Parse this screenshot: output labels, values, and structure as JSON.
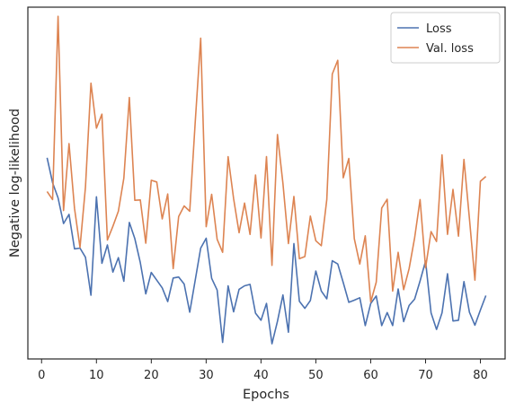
{
  "chart_data": {
    "type": "line",
    "xlabel": "Epochs",
    "ylabel": "Negative log-likelihood",
    "xlim": [
      -2.5,
      84.5
    ],
    "xticks": [
      0,
      10,
      20,
      30,
      40,
      50,
      60,
      70,
      80
    ],
    "xtick_labels": [
      "0",
      "10",
      "20",
      "30",
      "40",
      "50",
      "60",
      "70",
      "80"
    ],
    "ylim": [
      0,
      100
    ],
    "y_tick_labels_shown": false,
    "grid": false,
    "legend_position": "top-right",
    "x": [
      1,
      2,
      3,
      4,
      5,
      6,
      7,
      8,
      9,
      10,
      11,
      12,
      13,
      14,
      15,
      16,
      17,
      18,
      19,
      20,
      21,
      22,
      23,
      24,
      25,
      26,
      27,
      28,
      29,
      30,
      31,
      32,
      33,
      34,
      35,
      36,
      37,
      38,
      39,
      40,
      41,
      42,
      43,
      44,
      45,
      46,
      47,
      48,
      49,
      50,
      51,
      52,
      53,
      54,
      55,
      56,
      57,
      58,
      59,
      60,
      61,
      62,
      63,
      64,
      65,
      66,
      67,
      68,
      69,
      70,
      71,
      72,
      73,
      74,
      75,
      76,
      77,
      78,
      79,
      80,
      81
    ],
    "series": [
      {
        "name": "Loss",
        "color": "#4c72b0",
        "values": [
          57.2,
          50.1,
          45.8,
          38.5,
          41.1,
          31.3,
          31.5,
          28.9,
          18.1,
          46.1,
          27.2,
          32.4,
          24.7,
          28.8,
          22.1,
          38.8,
          34.2,
          27.4,
          18.5,
          24.6,
          22.4,
          20.2,
          16.3,
          23.0,
          23.3,
          21.3,
          13.3,
          22.4,
          31.5,
          34.3,
          22.9,
          19.6,
          4.7,
          20.8,
          13.4,
          19.8,
          20.8,
          21.2,
          13.0,
          11.0,
          15.8,
          4.3,
          10.7,
          18.2,
          7.6,
          32.8,
          16.4,
          14.4,
          16.6,
          25.0,
          19.3,
          17.1,
          27.9,
          27.0,
          21.7,
          16.1,
          16.7,
          17.4,
          9.5,
          15.8,
          17.9,
          9.5,
          13.2,
          9.5,
          19.9,
          10.6,
          15.2,
          17.0,
          22.2,
          27.8,
          13.1,
          8.4,
          13.1,
          24.2,
          10.8,
          11.0,
          22.0,
          13.3,
          9.6,
          13.9,
          18.0
        ]
      },
      {
        "name": "Val. loss",
        "color": "#dd8452",
        "values": [
          47.6,
          45.3,
          97.4,
          42.2,
          61.2,
          42.8,
          31.7,
          48.9,
          78.4,
          65.6,
          69.6,
          33.8,
          37.7,
          42.0,
          51.4,
          74.3,
          45.1,
          45.2,
          32.9,
          50.8,
          50.3,
          39.8,
          46.9,
          25.7,
          40.5,
          43.5,
          42.0,
          67.3,
          91.2,
          37.6,
          46.8,
          34.0,
          30.3,
          57.5,
          45.6,
          35.9,
          44.3,
          35.4,
          52.3,
          34.4,
          57.5,
          26.6,
          63.8,
          49.9,
          32.8,
          46.2,
          28.5,
          29.1,
          40.6,
          33.6,
          32.2,
          45.3,
          81.0,
          84.9,
          51.5,
          57.0,
          34.2,
          27.0,
          35.0,
          16.2,
          21.8,
          42.9,
          45.4,
          19.3,
          30.3,
          19.7,
          25.7,
          34.4,
          45.3,
          25.9,
          36.2,
          33.4,
          58.0,
          35.4,
          48.2,
          34.9,
          56.7,
          39.9,
          22.4,
          50.5,
          51.9
        ]
      }
    ]
  }
}
